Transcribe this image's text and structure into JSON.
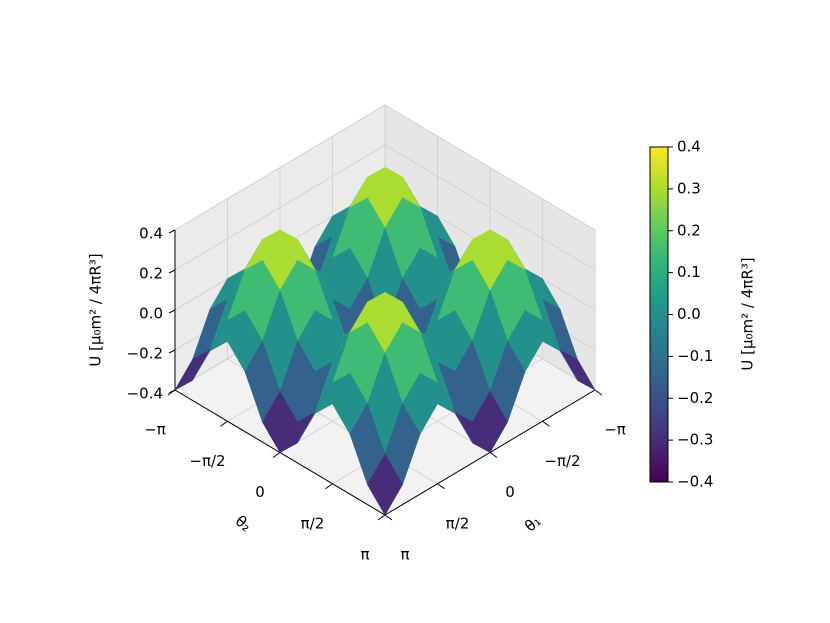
{
  "chart_data": {
    "type": "surface",
    "xlabel": "θ₁",
    "ylabel": "θ₂",
    "zlabel": "U [μ₀m² / 4πR³]",
    "colorbar_label": "U [μ₀m² / 4πR³]",
    "colormap": "viridis",
    "x": [
      -3.1416,
      -2.618,
      -2.0944,
      -1.5708,
      -1.0472,
      -0.5236,
      0,
      0.5236,
      1.0472,
      1.5708,
      2.0944,
      2.618,
      3.1416
    ],
    "y": [
      -3.1416,
      -2.618,
      -2.0944,
      -1.5708,
      -1.0472,
      -0.5236,
      0,
      0.5236,
      1.0472,
      1.5708,
      2.0944,
      2.618,
      3.1416
    ],
    "z": [
      [
        -0.4,
        -0.3,
        -0.1,
        0,
        -0.1,
        -0.3,
        -0.4,
        -0.3,
        -0.1,
        0,
        -0.1,
        -0.3,
        -0.4
      ],
      [
        -0.3,
        -0.2,
        0,
        0.1,
        0,
        -0.2,
        -0.3,
        -0.2,
        0,
        0.1,
        0,
        -0.2,
        -0.3
      ],
      [
        -0.1,
        0,
        0.2,
        0.3,
        0.2,
        0,
        -0.1,
        0,
        0.2,
        0.3,
        0.2,
        0,
        -0.1
      ],
      [
        0,
        0.1,
        0.3,
        0.4,
        0.3,
        0.1,
        0,
        0.1,
        0.3,
        0.4,
        0.3,
        0.1,
        0
      ],
      [
        -0.1,
        0,
        0.2,
        0.3,
        0.2,
        0,
        -0.1,
        0,
        0.2,
        0.3,
        0.2,
        0,
        -0.1
      ],
      [
        -0.3,
        -0.2,
        0,
        0.1,
        0,
        -0.2,
        -0.3,
        -0.2,
        0,
        0.1,
        0,
        -0.2,
        -0.3
      ],
      [
        -0.4,
        -0.3,
        -0.1,
        0,
        -0.1,
        -0.3,
        -0.4,
        -0.3,
        -0.1,
        0,
        -0.1,
        -0.3,
        -0.4
      ],
      [
        -0.3,
        -0.2,
        0,
        0.1,
        0,
        -0.2,
        -0.3,
        -0.2,
        0,
        0.1,
        0,
        -0.2,
        -0.3
      ],
      [
        -0.1,
        0,
        0.2,
        0.3,
        0.2,
        0,
        -0.1,
        0,
        0.2,
        0.3,
        0.2,
        0,
        -0.1
      ],
      [
        0,
        0.1,
        0.3,
        0.4,
        0.3,
        0.1,
        0,
        0.1,
        0.3,
        0.4,
        0.3,
        0.1,
        0
      ],
      [
        -0.1,
        0,
        0.2,
        0.3,
        0.2,
        0,
        -0.1,
        0,
        0.2,
        0.3,
        0.2,
        0,
        -0.1
      ],
      [
        -0.3,
        -0.2,
        0,
        0.1,
        0,
        -0.2,
        -0.3,
        -0.2,
        0,
        0.1,
        0,
        -0.2,
        -0.3
      ],
      [
        -0.4,
        -0.3,
        -0.1,
        0,
        -0.1,
        -0.3,
        -0.4,
        -0.3,
        -0.1,
        0,
        -0.1,
        -0.3,
        -0.4
      ]
    ],
    "xlim": [
      -3.1416,
      3.1416
    ],
    "ylim": [
      -3.1416,
      3.1416
    ],
    "zlim": [
      -0.4,
      0.4
    ],
    "xticks": [
      {
        "value": -3.1416,
        "label": "−π"
      },
      {
        "value": -1.5708,
        "label": "−π/2"
      },
      0,
      {
        "value": 1.5708,
        "label": "π/2"
      },
      {
        "value": 3.1416,
        "label": "π"
      }
    ],
    "yticks": [
      {
        "value": -3.1416,
        "label": "−π"
      },
      {
        "value": -1.5708,
        "label": "−π/2"
      },
      0,
      {
        "value": 1.5708,
        "label": "π/2"
      },
      {
        "value": 3.1416,
        "label": "π"
      }
    ],
    "zticks": [
      {
        "value": -0.4,
        "label": "−0.4"
      },
      {
        "value": -0.2,
        "label": "−0.2"
      },
      {
        "value": 0,
        "label": "0.0"
      },
      0.2,
      0.4
    ],
    "clim": [
      -0.4,
      0.4
    ],
    "cticks": [
      {
        "value": -0.4,
        "label": "−0.4"
      },
      {
        "value": -0.3,
        "label": "−0.3"
      },
      {
        "value": -0.2,
        "label": "−0.2"
      },
      {
        "value": -0.1,
        "label": "−0.1"
      },
      {
        "value": 0,
        "label": "0.0"
      },
      0.1,
      0.2,
      0.3,
      0.4
    ],
    "grid": true
  }
}
